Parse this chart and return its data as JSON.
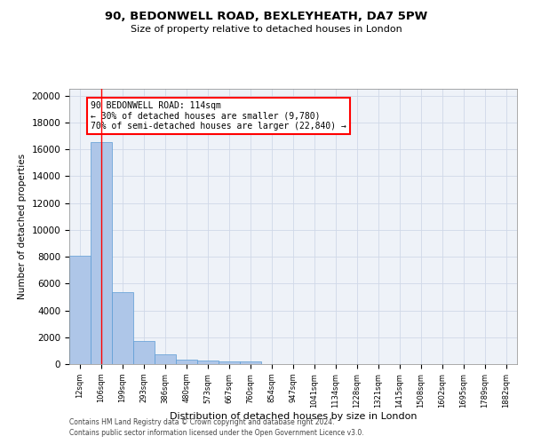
{
  "title_line1": "90, BEDONWELL ROAD, BEXLEYHEATH, DA7 5PW",
  "title_line2": "Size of property relative to detached houses in London",
  "xlabel": "Distribution of detached houses by size in London",
  "ylabel": "Number of detached properties",
  "categories": [
    "12sqm",
    "106sqm",
    "199sqm",
    "293sqm",
    "386sqm",
    "480sqm",
    "573sqm",
    "667sqm",
    "760sqm",
    "854sqm",
    "947sqm",
    "1041sqm",
    "1134sqm",
    "1228sqm",
    "1321sqm",
    "1415sqm",
    "1508sqm",
    "1602sqm",
    "1695sqm",
    "1789sqm",
    "1882sqm"
  ],
  "values": [
    8050,
    16500,
    5350,
    1750,
    750,
    350,
    270,
    220,
    200,
    0,
    0,
    0,
    0,
    0,
    0,
    0,
    0,
    0,
    0,
    0,
    0
  ],
  "bar_color": "#aec6e8",
  "bar_edge_color": "#5b9bd5",
  "vline_x": 1,
  "vline_color": "red",
  "annotation_text": "90 BEDONWELL ROAD: 114sqm\n← 30% of detached houses are smaller (9,780)\n70% of semi-detached houses are larger (22,840) →",
  "annotation_box_color": "white",
  "annotation_box_edge_color": "red",
  "ylim": [
    0,
    20500
  ],
  "yticks": [
    0,
    2000,
    4000,
    6000,
    8000,
    10000,
    12000,
    14000,
    16000,
    18000,
    20000
  ],
  "grid_color": "#d0d8e8",
  "background_color": "#eef2f8",
  "footer_line1": "Contains HM Land Registry data © Crown copyright and database right 2024.",
  "footer_line2": "Contains public sector information licensed under the Open Government Licence v3.0."
}
